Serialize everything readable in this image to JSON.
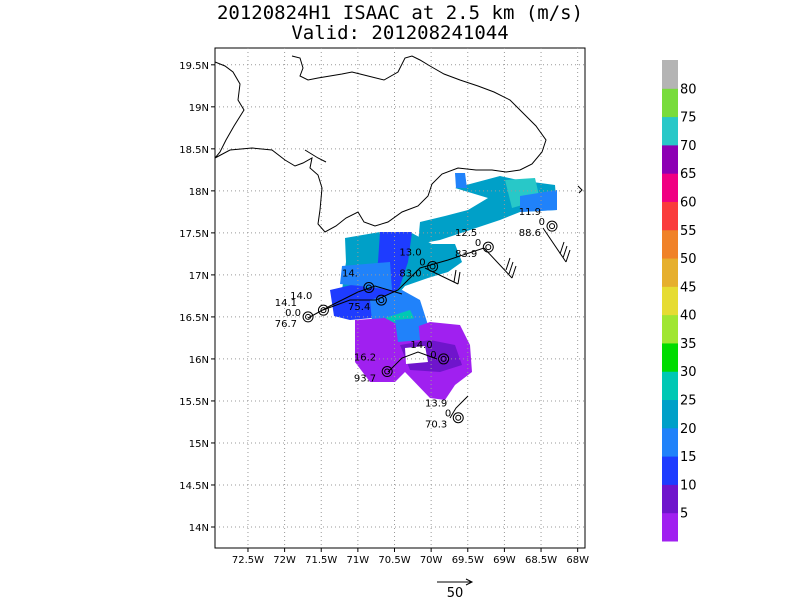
{
  "title": {
    "line1": "20120824H1 ISAAC at 2.5 km (m/s)",
    "line2": "Valid: 201208241044"
  },
  "axes": {
    "lon_range": [
      -72.95,
      -67.9
    ],
    "lat_range": [
      13.75,
      19.7
    ],
    "x_ticks": [
      {
        "value": -72.5,
        "label": "72.5W"
      },
      {
        "value": -72,
        "label": "72W"
      },
      {
        "value": -71.5,
        "label": "71.5W"
      },
      {
        "value": -71,
        "label": "71W"
      },
      {
        "value": -70.5,
        "label": "70.5W"
      },
      {
        "value": -70,
        "label": "70W"
      },
      {
        "value": -69.5,
        "label": "69.5W"
      },
      {
        "value": -69,
        "label": "69W"
      },
      {
        "value": -68.5,
        "label": "68.5W"
      },
      {
        "value": -68,
        "label": "68W"
      }
    ],
    "y_ticks": [
      {
        "value": 14,
        "label": "14N"
      },
      {
        "value": 14.5,
        "label": "14.5N"
      },
      {
        "value": 15,
        "label": "15N"
      },
      {
        "value": 15.5,
        "label": "15.5N"
      },
      {
        "value": 16,
        "label": "16N"
      },
      {
        "value": 16.5,
        "label": "16.5N"
      },
      {
        "value": 17,
        "label": "17N"
      },
      {
        "value": 17.5,
        "label": "17.5N"
      },
      {
        "value": 18,
        "label": "18N"
      },
      {
        "value": 18.5,
        "label": "18.5N"
      },
      {
        "value": 19,
        "label": "19N"
      },
      {
        "value": 19.5,
        "label": "19.5N"
      }
    ],
    "grid": true
  },
  "colorbar": {
    "bands": [
      {
        "color": "#a020f0"
      },
      {
        "color": "#6f15cc"
      },
      {
        "color": "#1e3cff"
      },
      {
        "color": "#2082fa"
      },
      {
        "color": "#00a0c8"
      },
      {
        "color": "#00c8b4"
      },
      {
        "color": "#00dc00"
      },
      {
        "color": "#a0e632"
      },
      {
        "color": "#e6dc32"
      },
      {
        "color": "#e6af2d"
      },
      {
        "color": "#f08228"
      },
      {
        "color": "#fa3c3c"
      },
      {
        "color": "#f00082"
      },
      {
        "color": "#8c00b4"
      },
      {
        "color": "#28c8c8"
      },
      {
        "color": "#78dc3c"
      },
      {
        "color": "#b4b4b4"
      }
    ],
    "labels": [
      "5",
      "10",
      "15",
      "20",
      "25",
      "30",
      "35",
      "40",
      "45",
      "50",
      "55",
      "60",
      "65",
      "70",
      "75",
      "80"
    ]
  },
  "stations": [
    {
      "lon": -68.35,
      "lat": 17.58,
      "values": [
        "11.9",
        "0",
        "88.6"
      ]
    },
    {
      "lon": -69.22,
      "lat": 17.33,
      "values": [
        "12.5",
        "0",
        "83.9"
      ]
    },
    {
      "lon": -69.98,
      "lat": 17.1,
      "values": [
        "13.0",
        "0",
        "83.0"
      ]
    },
    {
      "lon": -70.85,
      "lat": 16.85,
      "values": [
        "14.",
        "",
        ""
      ]
    },
    {
      "lon": -70.68,
      "lat": 16.7,
      "values": [
        "",
        "",
        "75.4"
      ]
    },
    {
      "lon": -71.47,
      "lat": 16.58,
      "values": [
        "14.0",
        "",
        ""
      ]
    },
    {
      "lon": -71.68,
      "lat": 16.5,
      "values": [
        "14.1",
        "0.0",
        "76.7"
      ]
    },
    {
      "lon": -69.83,
      "lat": 16.0,
      "values": [
        "14.0",
        "0",
        ""
      ]
    },
    {
      "lon": -70.6,
      "lat": 15.85,
      "values": [
        "16.2",
        "",
        "93.7"
      ]
    },
    {
      "lon": -69.63,
      "lat": 15.3,
      "values": [
        "13.9",
        "0",
        "70.3"
      ]
    }
  ],
  "reference_vector": {
    "label": "50"
  }
}
